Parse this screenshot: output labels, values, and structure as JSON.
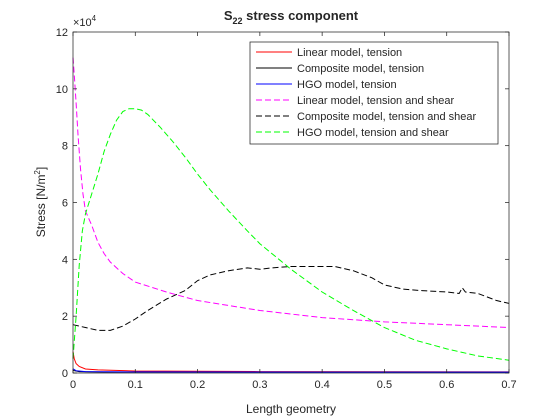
{
  "chart_data": {
    "type": "line",
    "title": "S",
    "title_subscript": "22",
    "title_suffix": " stress component",
    "xlabel": "Length geometry",
    "ylabel": "Stress [N/m",
    "ylabel_superscript": "2",
    "ylabel_suffix": "]",
    "exponent_base": "×10",
    "exponent_power": "4",
    "xlim": [
      0,
      0.7
    ],
    "ylim": [
      0,
      120000
    ],
    "xticks": [
      0,
      0.1,
      0.2,
      0.3,
      0.4,
      0.5,
      0.6,
      0.7
    ],
    "xtick_labels": [
      "0",
      "0.1",
      "0.2",
      "0.3",
      "0.4",
      "0.5",
      "0.6",
      "0.7"
    ],
    "yticks": [
      0,
      20000,
      40000,
      60000,
      80000,
      100000,
      120000
    ],
    "ytick_labels": [
      "0",
      "2",
      "4",
      "6",
      "8",
      "10",
      "12"
    ],
    "legend_position": "top-right",
    "series": [
      {
        "name": "Linear model, tension",
        "color": "#ff0000",
        "dash": "solid",
        "x": [
          0,
          0.002,
          0.005,
          0.01,
          0.02,
          0.04,
          0.1,
          0.3,
          0.7
        ],
        "y": [
          7500,
          5000,
          3300,
          2300,
          1400,
          1100,
          700,
          500,
          400
        ]
      },
      {
        "name": "Composite model, tension",
        "color": "#000000",
        "dash": "solid",
        "x": [
          0,
          0.01,
          0.05,
          0.2,
          0.5,
          0.7
        ],
        "y": [
          900,
          500,
          350,
          300,
          250,
          200
        ]
      },
      {
        "name": "HGO model, tension",
        "color": "#0000ff",
        "dash": "solid",
        "x": [
          0,
          0.005,
          0.02,
          0.1,
          0.4,
          0.7
        ],
        "y": [
          1500,
          800,
          500,
          400,
          300,
          300
        ]
      },
      {
        "name": "Linear model, tension and shear",
        "color": "#ff00ff",
        "dash": "dashed",
        "x": [
          0,
          0.002,
          0.005,
          0.008,
          0.012,
          0.016,
          0.02,
          0.03,
          0.04,
          0.05,
          0.06,
          0.08,
          0.1,
          0.15,
          0.2,
          0.3,
          0.4,
          0.5,
          0.6,
          0.7
        ],
        "y": [
          111000,
          105000,
          95000,
          84000,
          72000,
          63000,
          57000,
          52000,
          46000,
          42000,
          39000,
          35000,
          32000,
          28500,
          25500,
          22000,
          19500,
          18000,
          17000,
          16000
        ]
      },
      {
        "name": "Composite model, tension and shear",
        "color": "#000000",
        "dash": "dashed",
        "x": [
          0,
          0.02,
          0.04,
          0.06,
          0.08,
          0.1,
          0.12,
          0.15,
          0.18,
          0.2,
          0.22,
          0.25,
          0.28,
          0.3,
          0.32,
          0.35,
          0.38,
          0.4,
          0.42,
          0.45,
          0.48,
          0.5,
          0.53,
          0.56,
          0.6,
          0.62,
          0.625,
          0.63,
          0.65,
          0.68,
          0.7
        ],
        "y": [
          17000,
          16000,
          15000,
          15000,
          16500,
          19000,
          22000,
          26000,
          29000,
          32500,
          34500,
          36000,
          37000,
          36500,
          37000,
          37500,
          37500,
          37500,
          37500,
          36000,
          33500,
          31000,
          29500,
          29000,
          28500,
          28000,
          30000,
          28500,
          28000,
          25500,
          24500
        ]
      },
      {
        "name": "HGO model, tension and shear",
        "color": "#00ff00",
        "dash": "dashed",
        "x": [
          0,
          0.005,
          0.01,
          0.015,
          0.02,
          0.03,
          0.04,
          0.05,
          0.06,
          0.07,
          0.08,
          0.09,
          0.1,
          0.11,
          0.12,
          0.14,
          0.16,
          0.18,
          0.2,
          0.22,
          0.25,
          0.28,
          0.3,
          0.35,
          0.4,
          0.45,
          0.5,
          0.55,
          0.6,
          0.65,
          0.7
        ],
        "y": [
          5000,
          20000,
          38000,
          50000,
          56000,
          63000,
          70000,
          78000,
          84000,
          89000,
          92000,
          93000,
          93000,
          92500,
          91000,
          86500,
          81500,
          76000,
          70000,
          64500,
          57000,
          50000,
          45500,
          36500,
          28500,
          22000,
          16000,
          11500,
          8500,
          6000,
          4500
        ]
      }
    ]
  }
}
